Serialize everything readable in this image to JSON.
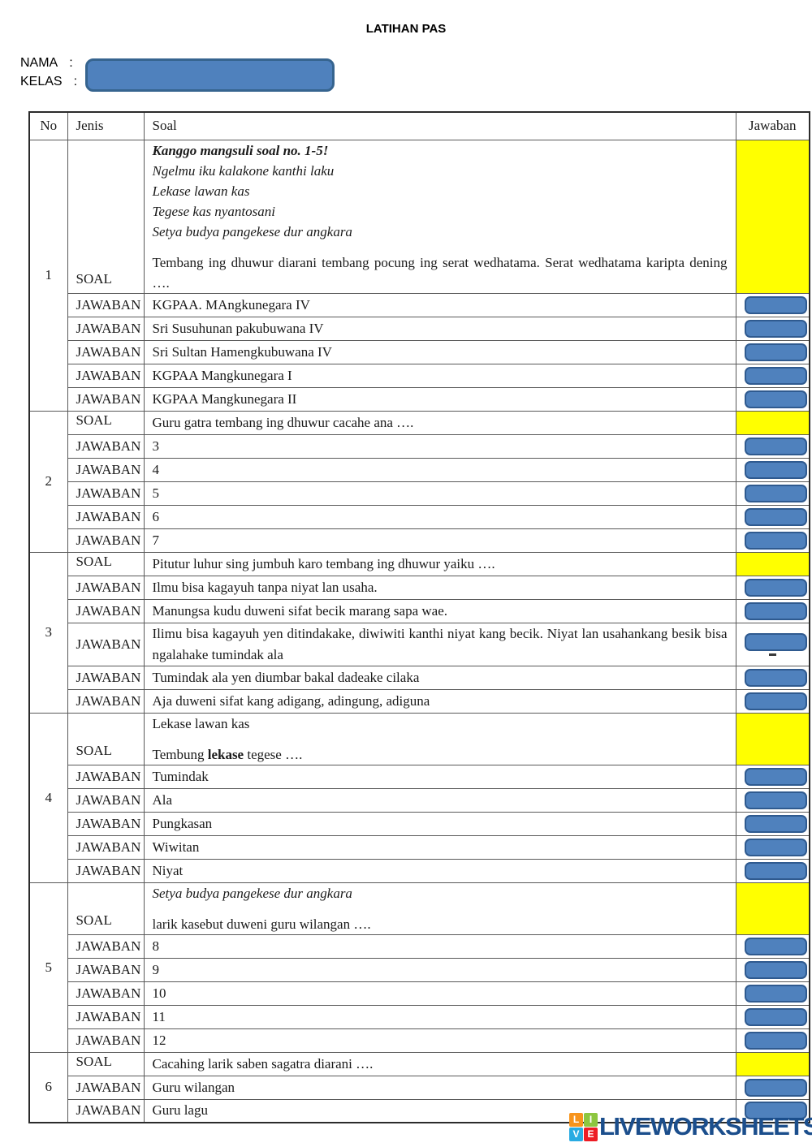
{
  "page": {
    "title": "LATIHAN PAS"
  },
  "form": {
    "nama_label": "NAMA",
    "kelas_label": "KELAS",
    "colon": ":",
    "input_value": ""
  },
  "colors": {
    "accent_blue": "#4f81bd",
    "accent_blue_border": "#2f5a8f",
    "highlight_yellow": "#ffff00",
    "watermark_blue": "#1b4e8c"
  },
  "table": {
    "headers": {
      "no": "No",
      "jenis": "Jenis",
      "soal": "Soal",
      "jawaban": "Jawaban"
    },
    "jenis_labels": {
      "soal": "SOAL",
      "jawaban": "JAWABAN"
    }
  },
  "questions": [
    {
      "no": "1",
      "soal_paragraphs": [
        {
          "segments": [
            {
              "t": "Kanggo mangsuli soal no. 1-5!",
              "b": true,
              "i": true
            }
          ]
        },
        {
          "segments": [
            {
              "t": "Ngelmu iku kalakone kanthi laku",
              "i": true
            }
          ]
        },
        {
          "segments": [
            {
              "t": "Lekase lawan kas",
              "i": true
            }
          ]
        },
        {
          "segments": [
            {
              "t": "Tegese kas nyantosani",
              "i": true
            }
          ]
        },
        {
          "segments": [
            {
              "t": "Setya budya pangekese dur angkara",
              "i": true
            }
          ]
        },
        {
          "segments": [
            {
              "t": "Tembang ing dhuwur diarani tembang pocung ing serat wedhatama. Serat wedhatama karipta dening …."
            }
          ],
          "gap": true
        }
      ],
      "answers": [
        {
          "text": "KGPAA. MAngkunegara IV"
        },
        {
          "text": "Sri Susuhunan pakubuwana IV"
        },
        {
          "text": "Sri Sultan Hamengkubuwana IV"
        },
        {
          "text": "KGPAA Mangkunegara I"
        },
        {
          "text": "KGPAA Mangkunegara II"
        }
      ]
    },
    {
      "no": "2",
      "soal_paragraphs": [
        {
          "segments": [
            {
              "t": "Guru gatra tembang ing dhuwur cacahe ana …."
            }
          ]
        }
      ],
      "answers": [
        {
          "text": "3"
        },
        {
          "text": "4"
        },
        {
          "text": "5"
        },
        {
          "text": "6"
        },
        {
          "text": "7"
        }
      ]
    },
    {
      "no": "3",
      "soal_paragraphs": [
        {
          "segments": [
            {
              "t": "Pitutur luhur sing jumbuh karo tembang ing dhuwur yaiku …."
            }
          ]
        }
      ],
      "answers": [
        {
          "text": "Ilmu bisa kagayuh tanpa niyat lan usaha."
        },
        {
          "text": "Manungsa kudu duweni sifat becik marang sapa wae."
        },
        {
          "text": "Ilimu bisa kagayuh yen ditindakake, diwiwiti kanthi niyat kang becik. Niyat lan usahankang besik bisa ngalahake tumindak ala",
          "mark": true
        },
        {
          "text": "Tumindak ala yen diumbar bakal dadeake cilaka"
        },
        {
          "text": "Aja duweni sifat kang adigang, adingung, adiguna"
        }
      ]
    },
    {
      "no": "4",
      "soal_paragraphs": [
        {
          "segments": [
            {
              "t": "Lekase lawan kas"
            }
          ]
        },
        {
          "segments": [
            {
              "t": "Tembung "
            },
            {
              "t": "lekase",
              "b": true
            },
            {
              "t": " tegese …."
            }
          ],
          "gap": true
        }
      ],
      "answers": [
        {
          "text": "Tumindak"
        },
        {
          "text": "Ala"
        },
        {
          "text": "Pungkasan"
        },
        {
          "text": "Wiwitan"
        },
        {
          "text": "Niyat"
        }
      ]
    },
    {
      "no": "5",
      "soal_paragraphs": [
        {
          "segments": [
            {
              "t": "Setya budya pangekese dur angkara",
              "i": true
            }
          ]
        },
        {
          "segments": [
            {
              "t": "larik kasebut duweni guru wilangan …."
            }
          ],
          "gap": true
        }
      ],
      "answers": [
        {
          "text": "8"
        },
        {
          "text": "9"
        },
        {
          "text": "10"
        },
        {
          "text": "11"
        },
        {
          "text": "12"
        }
      ]
    },
    {
      "no": "6",
      "soal_paragraphs": [
        {
          "segments": [
            {
              "t": "Cacahing larik saben sagatra diarani …."
            }
          ]
        }
      ],
      "answers": [
        {
          "text": "Guru wilangan"
        },
        {
          "text": "Guru lagu"
        }
      ]
    }
  ],
  "watermark": {
    "text": "LIVEWORKSHEETS",
    "tiles": [
      {
        "letter": "L",
        "color": "#f7941d"
      },
      {
        "letter": "I",
        "color": "#8dc63f"
      },
      {
        "letter": "V",
        "color": "#29abe2"
      },
      {
        "letter": "E",
        "color": "#ed1c24"
      }
    ]
  }
}
